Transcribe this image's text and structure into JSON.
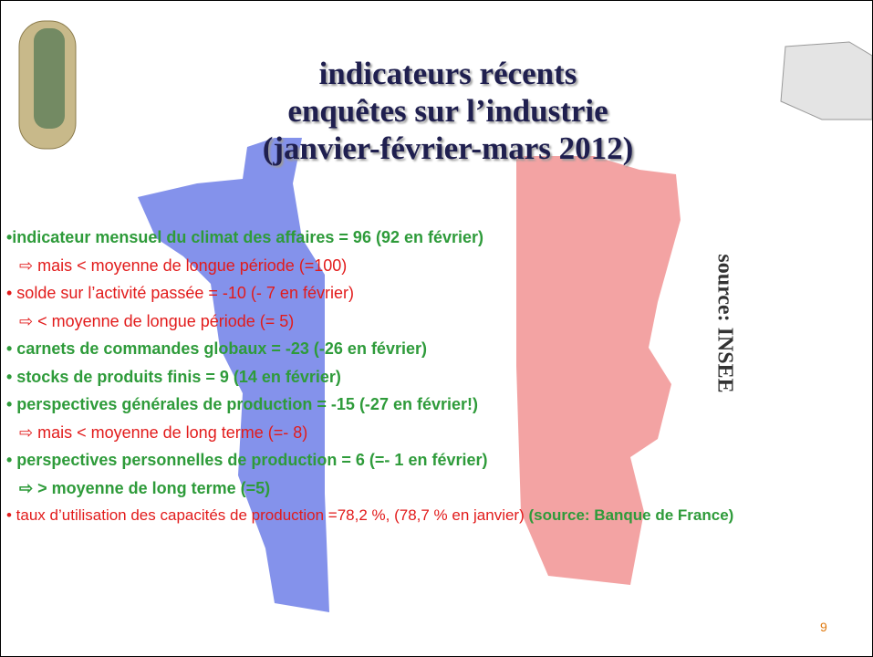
{
  "title": [
    "indicateurs récents",
    "enquêtes sur l’industrie",
    "(janvier-février-mars 2012)"
  ],
  "items": [
    {
      "text": "•indicateur mensuel du climat des affaires = 96 (92 en février)",
      "style": "green"
    },
    {
      "text": "⇨ mais < moyenne de longue période (=100)",
      "style": "red-sub"
    },
    {
      "text": "• solde sur l’activité passée = -10 (- 7 en février)",
      "style": "red"
    },
    {
      "text": "⇨ < moyenne de longue période (= 5)",
      "style": "red-sub"
    },
    {
      "text": "• carnets de commandes globaux = -23 (-26 en février)",
      "style": "green"
    },
    {
      "text": "• stocks de produits finis = 9 (14 en février)",
      "style": "green"
    },
    {
      "text": "• perspectives générales de production = -15 (-27 en février!)",
      "style": "green"
    },
    {
      "text": "⇨ mais < moyenne de long terme (=- 8)",
      "style": "red-sub"
    },
    {
      "text": "• perspectives personnelles de production = 6 (=- 1 en février)",
      "style": "green"
    },
    {
      "text": "⇨ > moyenne de long terme (=5)",
      "style": "green-sub"
    }
  ],
  "last_item": {
    "main": "• taux d’utilisation des capacités de production =78,2 %, (78,7 % en janvier)",
    "source": "(source: Banque de France)"
  },
  "side_source": "source: INSEE",
  "page_number": "9"
}
